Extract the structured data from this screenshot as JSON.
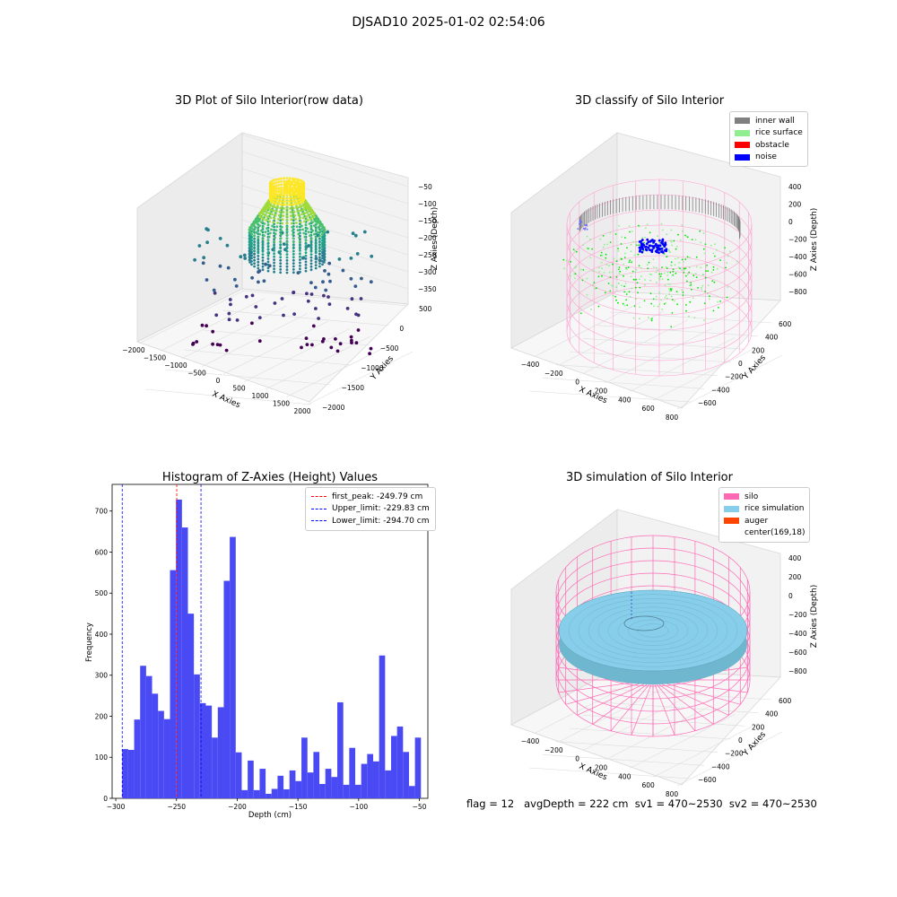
{
  "figure": {
    "suptitle": "DJSAD10 2025-01-02 02:54:06"
  },
  "panel1": {
    "title": "3D Plot of Silo Interior(row data)",
    "xlabel": "X Axies",
    "ylabel": "Y Axies",
    "zlabel": "Z Axies (Depth)",
    "xticks": [
      "−2000",
      "−1500",
      "−1000",
      "−500",
      "0",
      "500",
      "1000",
      "1500",
      "2000"
    ],
    "yticks": [
      "500",
      "0",
      "−500",
      "−1000",
      "−1500",
      "−2000"
    ],
    "zticks": [
      "−50",
      "−100",
      "−150",
      "−200",
      "−250",
      "−300",
      "−350"
    ]
  },
  "panel2": {
    "title": "3D classify of Silo Interior",
    "xlabel": "X Axies",
    "ylabel": "Y Axies",
    "zlabel": "Z Axies (Depth)",
    "xticks": [
      "−400",
      "−200",
      "0",
      "200",
      "400",
      "600",
      "800"
    ],
    "yticks": [
      "600",
      "400",
      "200",
      "0",
      "−200",
      "−400",
      "−600"
    ],
    "zticks": [
      "400",
      "200",
      "0",
      "−200",
      "−400",
      "−600",
      "−800"
    ],
    "legend": [
      {
        "label": "inner wall",
        "color": "#808080"
      },
      {
        "label": "rice surface",
        "color": "#90ee90"
      },
      {
        "label": "obstacle",
        "color": "#ff0000"
      },
      {
        "label": "noise",
        "color": "#0000ff"
      }
    ]
  },
  "panel4": {
    "title": "3D simulation of Silo Interior",
    "xlabel": "X Axies",
    "ylabel": "Y Axies",
    "zlabel": "Z Axies (Depth)",
    "xticks": [
      "−400",
      "−200",
      "0",
      "200",
      "400",
      "600",
      "800"
    ],
    "yticks": [
      "600",
      "400",
      "200",
      "0",
      "−200",
      "−400",
      "−600"
    ],
    "zticks": [
      "400",
      "200",
      "0",
      "−200",
      "−400",
      "−600",
      "−800"
    ],
    "legend": [
      {
        "label": "silo",
        "color": "#ff69b4"
      },
      {
        "label": "rice simulation",
        "color": "#87ceeb"
      },
      {
        "label": "auger",
        "color": "#ff4500"
      },
      {
        "label": "center(169,18)",
        "color": ""
      }
    ],
    "footer": "flag = 12   avgDepth = 222 cm  sv1 = 470~2530  sv2 = 470~2530"
  },
  "chart_data": [
    {
      "type": "scatter",
      "title": "3D Plot of Silo Interior(row data)",
      "xlabel": "X Axies",
      "ylabel": "Y Axies",
      "zlabel": "Z Axies (Depth)",
      "xlim": [
        -2000,
        2000
      ],
      "ylim": [
        -2000,
        500
      ],
      "zlim": [
        -350,
        -50
      ],
      "colormap": "viridis"
    },
    {
      "type": "scatter",
      "title": "3D classify of Silo Interior",
      "xlabel": "X Axies",
      "ylabel": "Y Axies",
      "zlabel": "Z Axies (Depth)",
      "xlim": [
        -400,
        800
      ],
      "ylim": [
        -600,
        600
      ],
      "zlim": [
        -800,
        400
      ],
      "series": [
        {
          "name": "inner wall",
          "color": "#808080"
        },
        {
          "name": "rice surface",
          "color": "#90ee90"
        },
        {
          "name": "obstacle",
          "color": "#ff0000"
        },
        {
          "name": "noise",
          "color": "#0000ff"
        }
      ],
      "legend": "top-right"
    },
    {
      "type": "bar",
      "title": "Histogram of Z-Axies (Height) Values",
      "xlabel": "Depth (cm)",
      "ylabel": "Frequency",
      "xlim": [
        -303,
        -43
      ],
      "ylim": [
        0,
        765
      ],
      "bin_start": -294.7,
      "bin_width": 4.92,
      "values": [
        120,
        118,
        192,
        323,
        298,
        255,
        213,
        193,
        556,
        728,
        660,
        450,
        302,
        232,
        226,
        148,
        222,
        530,
        637,
        112,
        20,
        92,
        20,
        72,
        11,
        23,
        55,
        22,
        68,
        42,
        148,
        63,
        113,
        35,
        72,
        52,
        234,
        33,
        123,
        33,
        84,
        108,
        90,
        348,
        68,
        152,
        175,
        113,
        30,
        148
      ],
      "xticks": [
        "−300",
        "−250",
        "−200",
        "−150",
        "−100",
        "−50"
      ],
      "yticks": [
        "0",
        "100",
        "200",
        "300",
        "400",
        "500",
        "600",
        "700"
      ],
      "bar_color": "#4a4af5",
      "vlines": [
        {
          "label": "first_peak: -249.79 cm",
          "x": -249.79,
          "color": "#ff0000"
        },
        {
          "label": "Upper_limit: -229.83 cm",
          "x": -229.83,
          "color": "#0000ff"
        },
        {
          "label": "Lower_limit: -294.70 cm",
          "x": -294.7,
          "color": "#0000ff"
        }
      ],
      "legend": "top-right"
    },
    {
      "type": "scatter",
      "title": "3D simulation of Silo Interior",
      "xlabel": "X Axies",
      "ylabel": "Y Axies",
      "zlabel": "Z Axies (Depth)",
      "xlim": [
        -400,
        800
      ],
      "ylim": [
        -600,
        600
      ],
      "zlim": [
        -800,
        400
      ],
      "series": [
        {
          "name": "silo",
          "color": "#ff69b4"
        },
        {
          "name": "rice simulation",
          "color": "#87ceeb"
        },
        {
          "name": "auger",
          "color": "#ff4500"
        }
      ],
      "center": "center(169,18)",
      "avg_depth_cm": 222,
      "legend": "top-right"
    }
  ]
}
